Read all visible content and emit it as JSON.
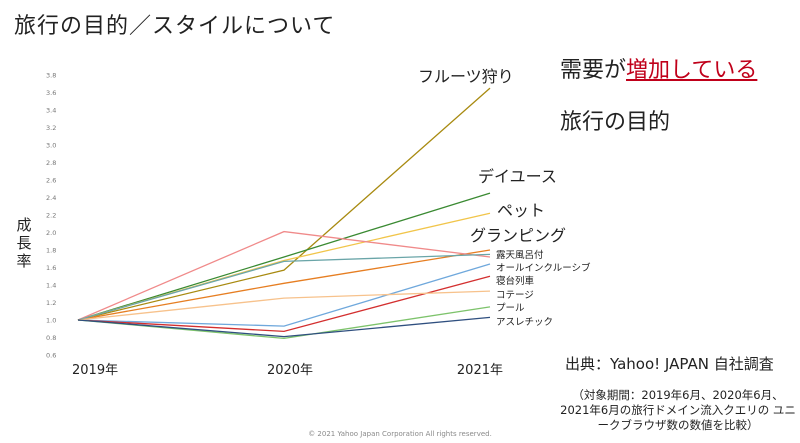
{
  "title": "旅行の目的／スタイルについて",
  "side_heading": {
    "prefix": "需要が",
    "highlight": "増加している",
    "line2": "旅行の目的"
  },
  "source": "出典：Yahoo! JAPAN 自社調査",
  "note": "（対象期間：2019年6月、2020年6月、2021年6月の旅行ドメイン流入クエリの ユニークブラウザ数の数値を比較）",
  "copyright": "© 2021 Yahoo Japan Corporation All rights reserved.",
  "colors": {
    "highlight": "#c0001a"
  },
  "chart_data": {
    "type": "line",
    "x": [
      "2019年",
      "2020年",
      "2021年"
    ],
    "ylabel": "成長率",
    "ylim": [
      0.6,
      3.8
    ],
    "yticks": [
      "0.6",
      "0.8",
      "1.0",
      "1.2",
      "1.4",
      "1.6",
      "1.8",
      "2.0",
      "2.2",
      "2.4",
      "2.6",
      "2.8",
      "3.0",
      "3.2",
      "3.4",
      "3.6",
      "3.8"
    ],
    "grid": false,
    "series": [
      {
        "name": "フルーツ狩り",
        "values": [
          1.0,
          1.57,
          3.65
        ],
        "color": "#a88a10",
        "label_size": "big"
      },
      {
        "name": "デイユース",
        "values": [
          1.0,
          1.72,
          2.45
        ],
        "color": "#3a8a32",
        "label_size": "big"
      },
      {
        "name": "ペット",
        "values": [
          1.0,
          1.68,
          2.22
        ],
        "color": "#f1c54a",
        "label_size": "big"
      },
      {
        "name": "グランピング",
        "values": [
          1.0,
          1.42,
          1.8
        ],
        "color": "#e67e22",
        "label_size": "big"
      },
      {
        "name": "露天風呂付",
        "values": [
          1.0,
          2.01,
          1.72
        ],
        "color": "#f08a8a",
        "label_size": "small"
      },
      {
        "name": "",
        "values": [
          1.0,
          1.67,
          1.75
        ],
        "color": "#6aa5a8",
        "label_size": "none"
      },
      {
        "name": "オールインクルーシブ",
        "values": [
          1.0,
          0.93,
          1.64
        ],
        "color": "#6fa8dc",
        "label_size": "small"
      },
      {
        "name": "寝台列車",
        "values": [
          1.0,
          0.87,
          1.5
        ],
        "color": "#d32f2f",
        "label_size": "small"
      },
      {
        "name": "コテージ",
        "values": [
          1.0,
          1.25,
          1.33
        ],
        "color": "#f7c28c",
        "label_size": "small"
      },
      {
        "name": "プール",
        "values": [
          1.0,
          0.79,
          1.15
        ],
        "color": "#7dc36b",
        "label_size": "small"
      },
      {
        "name": "アスレチック",
        "values": [
          1.0,
          0.81,
          1.03
        ],
        "color": "#2f4f7f",
        "label_size": "small"
      }
    ]
  }
}
